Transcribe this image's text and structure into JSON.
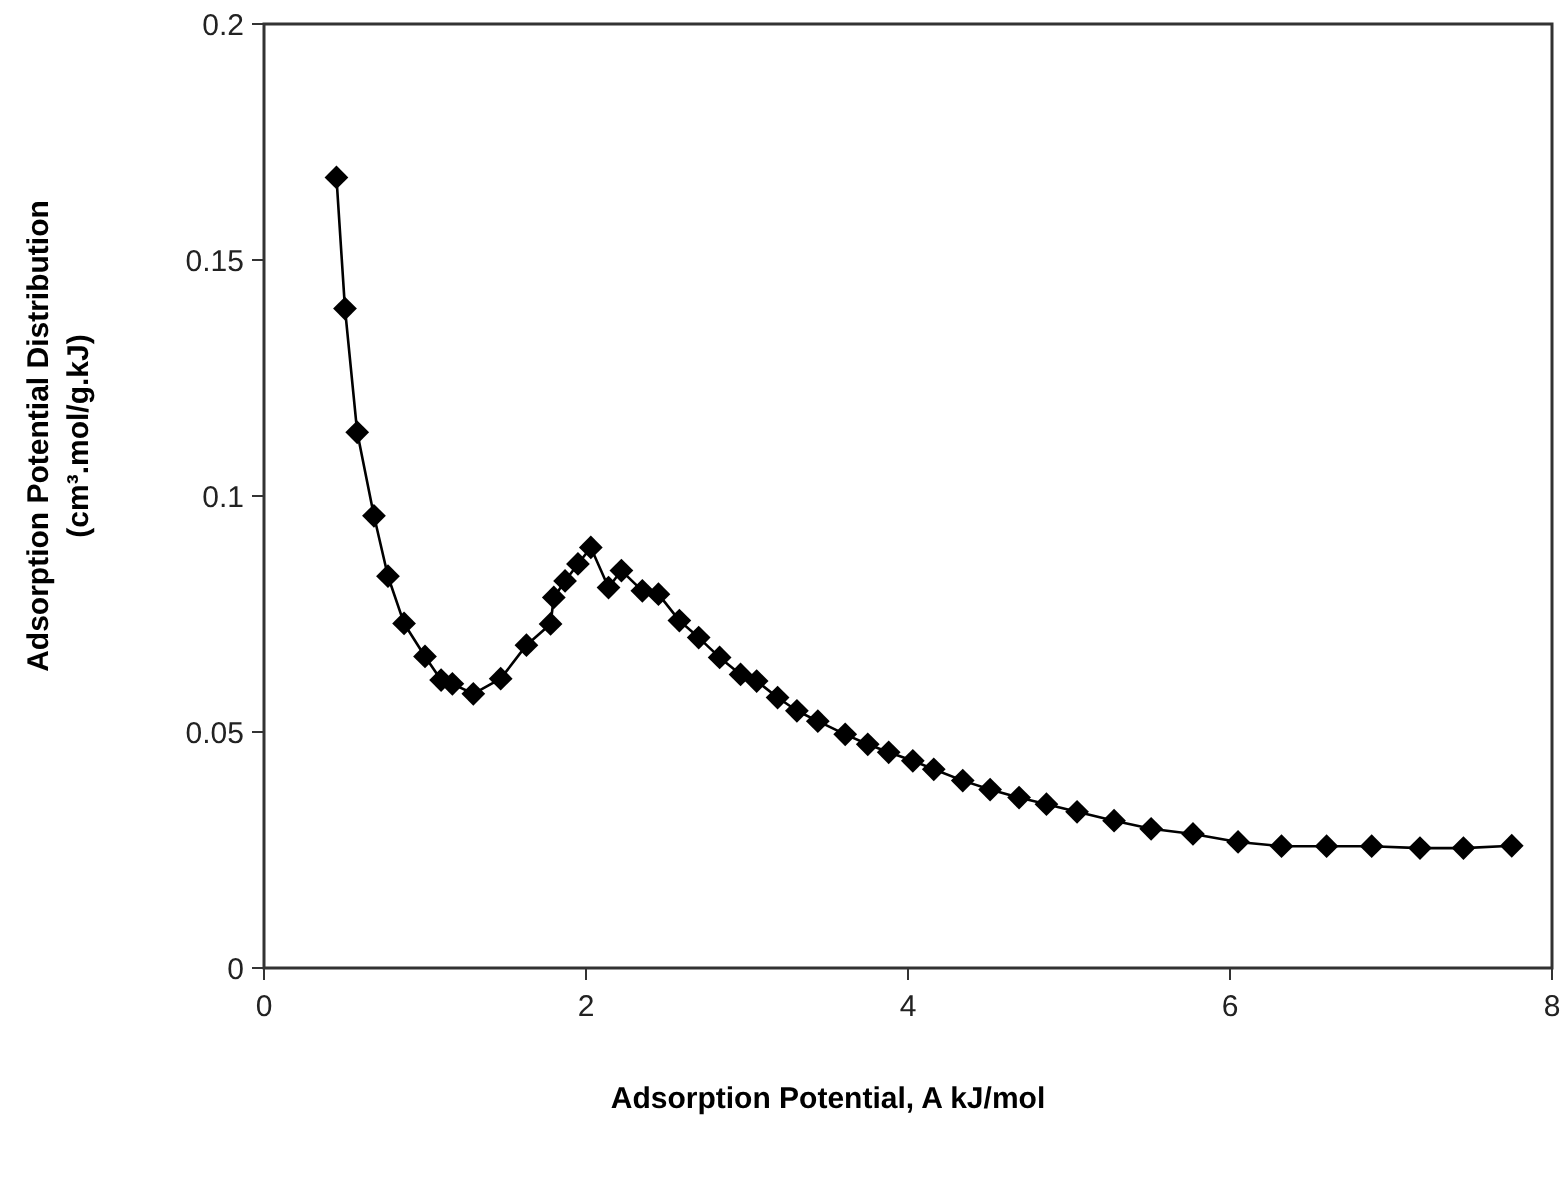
{
  "chart_data": {
    "type": "line",
    "xlabel": "Adsorption Potential, A kJ/mol",
    "ylabel": "Adsorption Potential Distribution\n(cm³.mol/g.kJ)",
    "x": [
      0.45,
      0.503,
      0.579,
      0.683,
      0.77,
      0.87,
      1.0,
      1.1,
      1.17,
      1.3,
      1.47,
      1.63,
      1.78,
      1.8,
      1.87,
      1.95,
      2.03,
      2.14,
      2.22,
      2.35,
      2.45,
      2.58,
      2.7,
      2.83,
      2.96,
      3.06,
      3.19,
      3.31,
      3.44,
      3.61,
      3.75,
      3.88,
      4.03,
      4.16,
      4.34,
      4.51,
      4.69,
      4.86,
      5.05,
      5.28,
      5.51,
      5.77,
      6.05,
      6.32,
      6.6,
      6.88,
      7.18,
      7.45,
      7.75
    ],
    "series": [
      {
        "color": "#000000",
        "values": [
          0.1675,
          0.1397,
          0.1135,
          0.0958,
          0.083,
          0.073,
          0.066,
          0.061,
          0.0602,
          0.0581,
          0.0613,
          0.0684,
          0.0729,
          0.0785,
          0.082,
          0.0856,
          0.0891,
          0.0806,
          0.0842,
          0.0799,
          0.0792,
          0.0736,
          0.07,
          0.0658,
          0.0622,
          0.0608,
          0.0573,
          0.0545,
          0.0523,
          0.0495,
          0.0474,
          0.0457,
          0.0439,
          0.0421,
          0.0397,
          0.0378,
          0.0361,
          0.0347,
          0.0331,
          0.0312,
          0.0295,
          0.0284,
          0.0267,
          0.0258,
          0.0258,
          0.0258,
          0.0254,
          0.0254,
          0.0259
        ]
      }
    ],
    "xlim": [
      0,
      8
    ],
    "xticks": [
      0,
      2,
      4,
      6,
      8
    ],
    "ylim": [
      0,
      0.2
    ],
    "yticks": [
      0,
      0.05,
      0.1,
      0.15,
      0.2
    ],
    "grid": false,
    "marker": "diamond",
    "line_style": "solid"
  }
}
